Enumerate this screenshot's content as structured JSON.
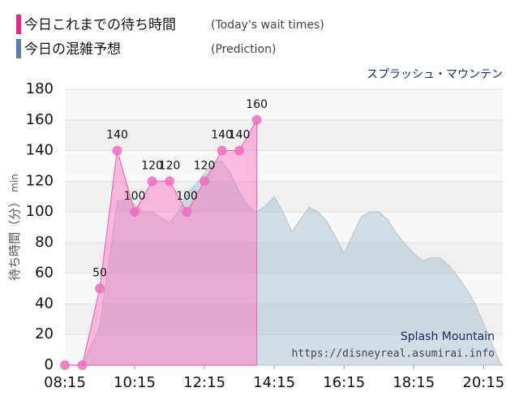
{
  "chart_data": {
    "type": "area",
    "title": "スプラッシュ・マウンテン",
    "y_label": "待ち時間（分）",
    "y_unit": "min",
    "watermark": "Splash Mountain",
    "source": "https://disneyreal.asumirai.info",
    "xlim": [
      8.25,
      20.8
    ],
    "xticks": [
      {
        "value": 8.25,
        "label": "08:15"
      },
      {
        "value": 10.25,
        "label": "10:15"
      },
      {
        "value": 12.25,
        "label": "12:15"
      },
      {
        "value": 14.25,
        "label": "14:15"
      },
      {
        "value": 16.25,
        "label": "16:15"
      },
      {
        "value": 18.25,
        "label": "18:15"
      },
      {
        "value": 20.25,
        "label": "20:15"
      }
    ],
    "ylim": [
      0,
      180
    ],
    "yticks": [
      0,
      20,
      40,
      60,
      80,
      100,
      120,
      140,
      160,
      180
    ],
    "grid": true,
    "series": [
      {
        "name": "今日これまでの待ち時間",
        "name_en": "(Today's wait times)",
        "color": "#e6268f",
        "x": [
          8.25,
          8.75,
          9.25,
          9.75,
          10.25,
          10.75,
          11.25,
          11.75,
          12.25,
          12.75,
          13.25,
          13.75
        ],
        "values": [
          0,
          0,
          50,
          140,
          100,
          120,
          120,
          100,
          120,
          140,
          140,
          160
        ],
        "value_labels": [
          null,
          null,
          "50",
          "140",
          "100",
          "120",
          "120",
          "100",
          "120",
          "140",
          "140",
          "160"
        ]
      },
      {
        "name": "今日の混雑予想",
        "name_en": "(Prediction)",
        "color": "#5f7ba8",
        "x": [
          8.25,
          8.75,
          9.25,
          9.75,
          10.0,
          10.25,
          10.5,
          10.75,
          11.0,
          11.25,
          11.5,
          11.75,
          12.0,
          12.25,
          12.5,
          12.75,
          13.0,
          13.25,
          13.5,
          13.75,
          14.0,
          14.25,
          14.5,
          14.75,
          15.0,
          15.25,
          15.5,
          15.75,
          16.0,
          16.25,
          16.5,
          16.75,
          17.0,
          17.25,
          17.5,
          17.75,
          18.0,
          18.25,
          18.5,
          18.75,
          19.0,
          19.25,
          19.5,
          19.75,
          20.0,
          20.25,
          20.75
        ],
        "values": [
          0,
          0,
          25,
          107,
          108,
          105,
          100,
          100,
          96,
          93,
          100,
          112,
          118,
          125,
          132,
          133,
          125,
          113,
          104,
          100,
          104,
          110,
          100,
          87,
          95,
          103,
          100,
          94,
          84,
          73,
          85,
          97,
          100,
          100,
          95,
          86,
          79,
          73,
          68,
          70,
          70,
          65,
          58,
          50,
          40,
          27,
          0
        ]
      }
    ]
  }
}
